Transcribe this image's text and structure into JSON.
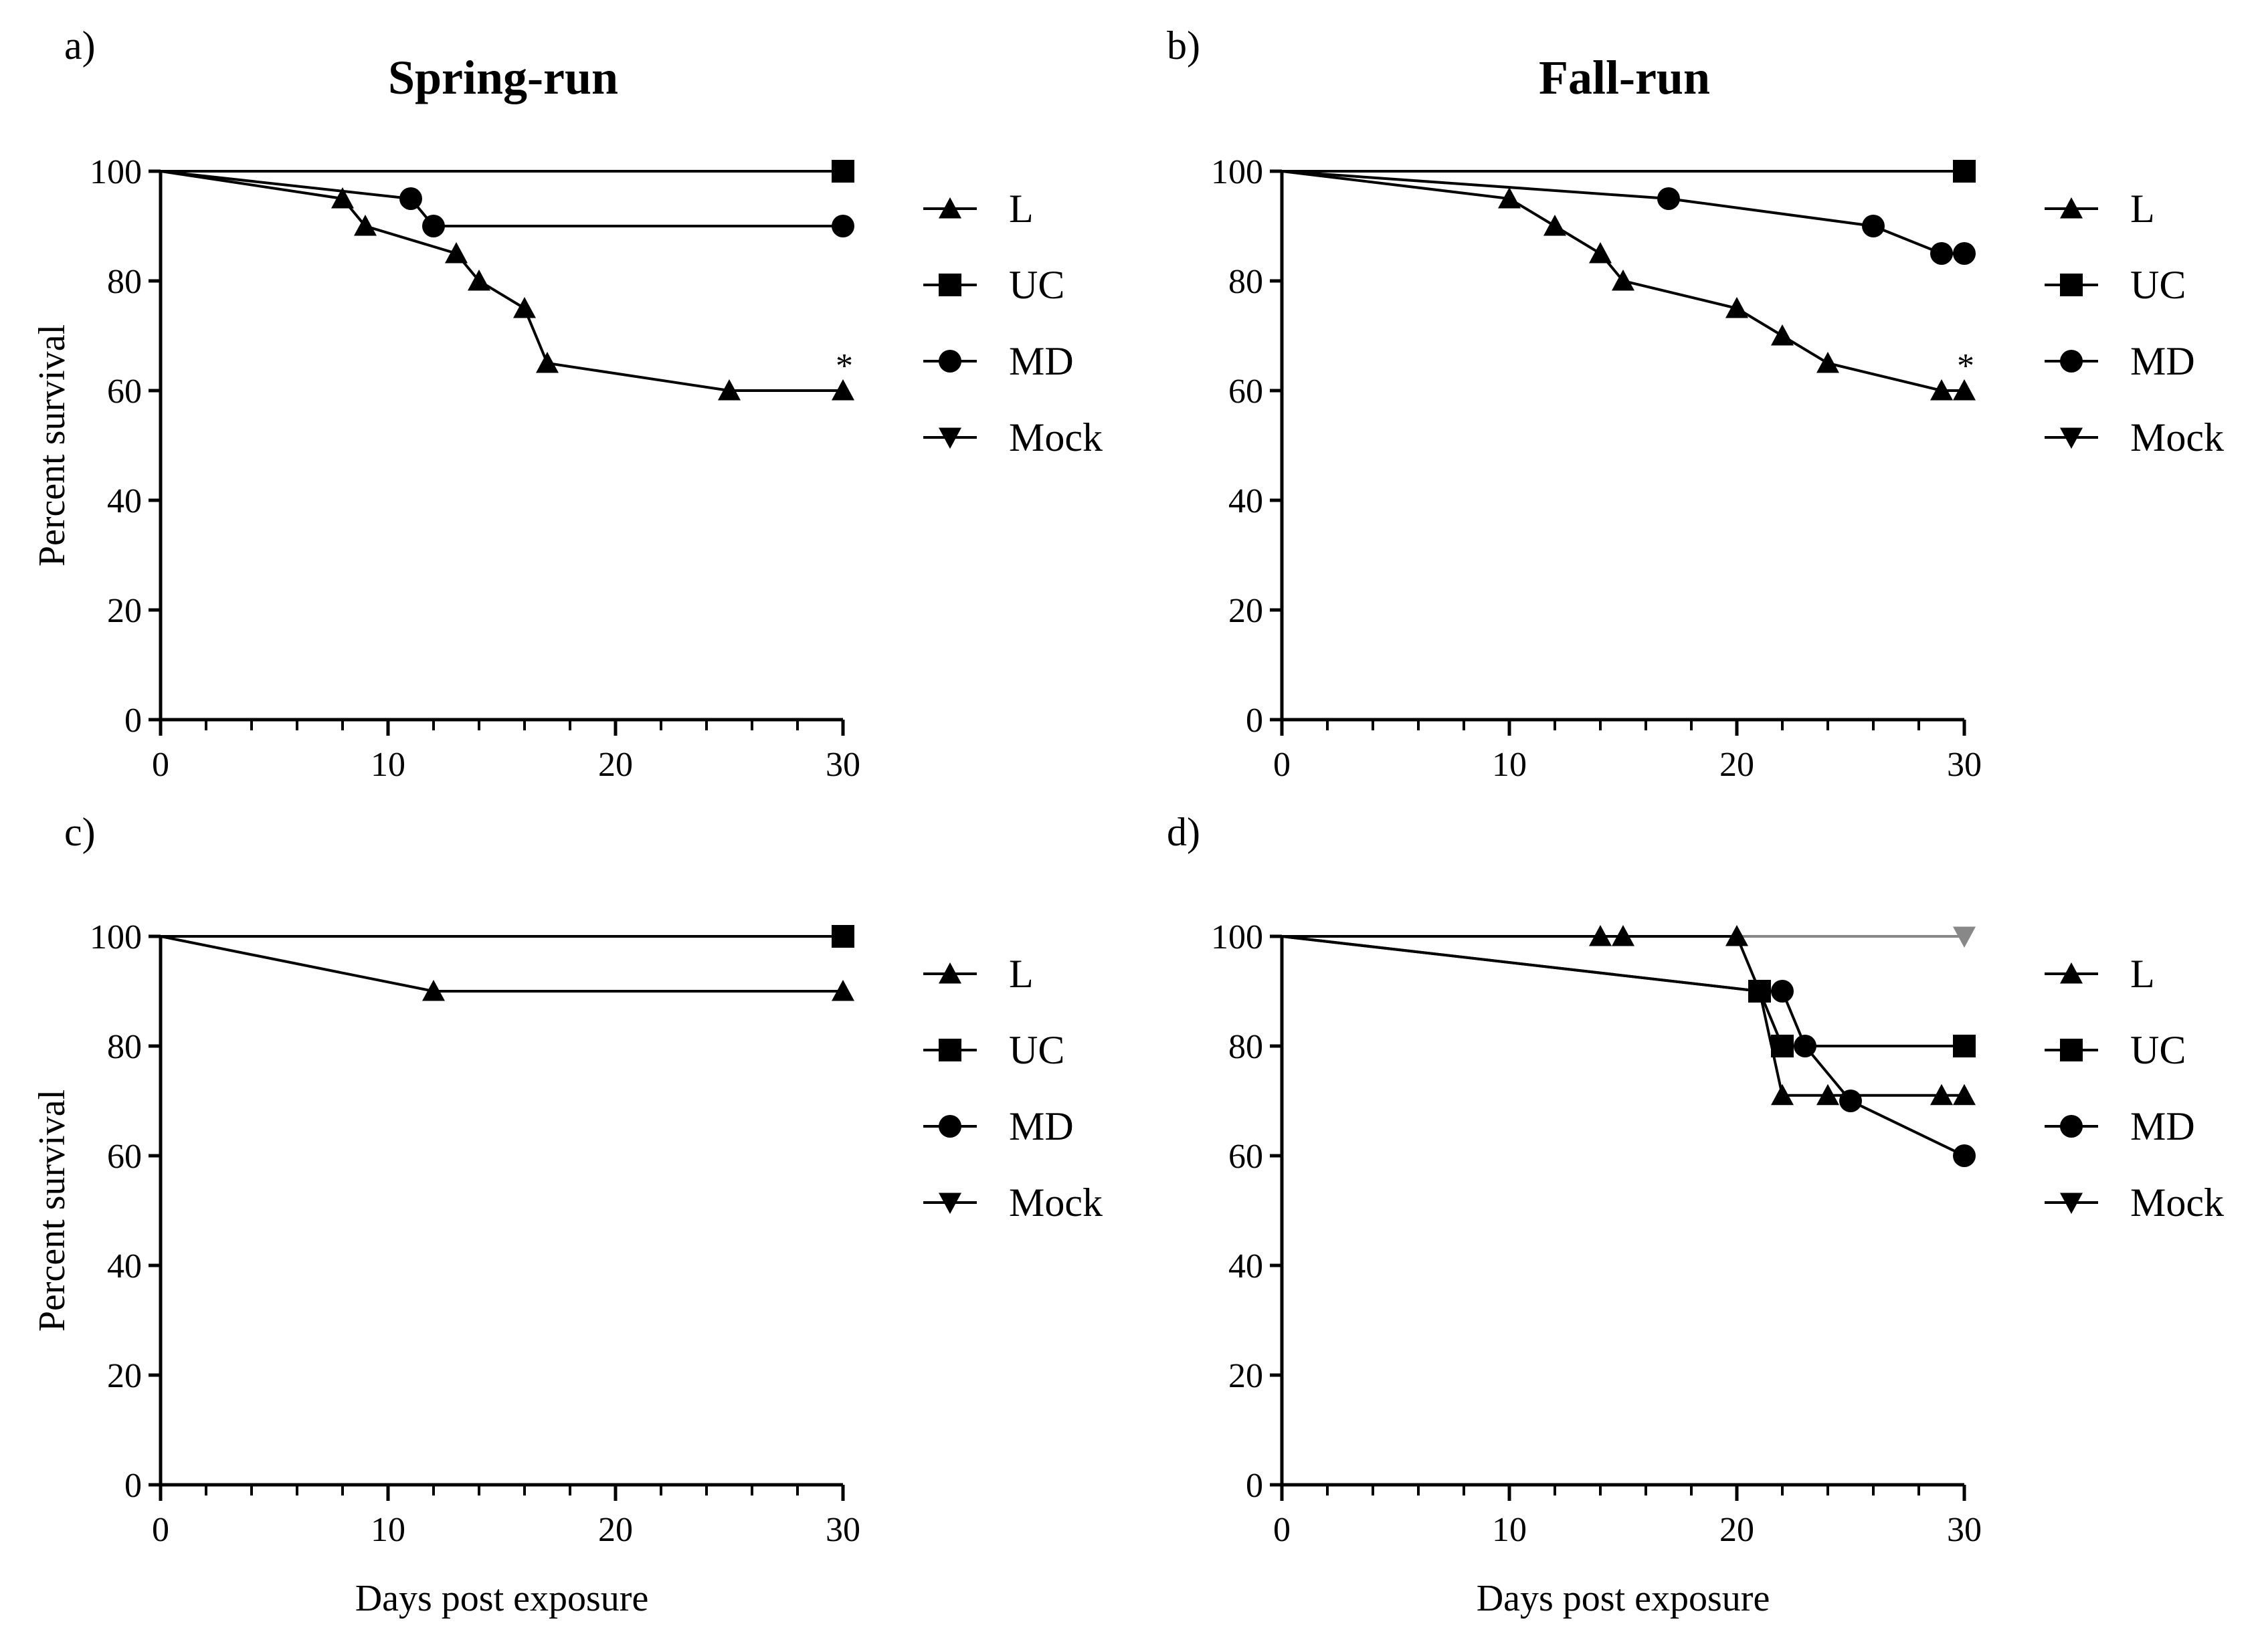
{
  "chart_data": [
    {
      "panel": "a)",
      "title": "Spring-run",
      "type": "line",
      "xlabel": "",
      "ylabel": "Percent survival",
      "xlim": [
        0,
        30
      ],
      "ylim": [
        0,
        100
      ],
      "xticks": [
        "0",
        "10",
        "20",
        "30"
      ],
      "yticks": [
        "0",
        "20",
        "40",
        "60",
        "80",
        "100"
      ],
      "legend": [
        "L",
        "UC",
        "MD",
        "Mock"
      ],
      "series": [
        {
          "name": "Mock",
          "marker": "triangle-down",
          "color": "#000000",
          "x": [
            0,
            30
          ],
          "y": [
            100,
            100
          ],
          "markers_x": []
        },
        {
          "name": "UC",
          "marker": "square",
          "color": "#000000",
          "x": [
            0,
            30
          ],
          "y": [
            100,
            100
          ],
          "markers_x": [
            30
          ]
        },
        {
          "name": "MD",
          "marker": "circle",
          "color": "#000000",
          "x": [
            0,
            11,
            12,
            30
          ],
          "y": [
            100,
            95,
            90,
            90
          ],
          "markers_x": [
            11,
            12,
            30
          ]
        },
        {
          "name": "L",
          "marker": "triangle-up",
          "color": "#000000",
          "x": [
            0,
            8,
            9,
            13,
            14,
            16,
            17,
            25,
            30
          ],
          "y": [
            100,
            95,
            90,
            85,
            80,
            75,
            65,
            60,
            60
          ],
          "markers_x": [
            8,
            9,
            13,
            14,
            16,
            17,
            25,
            30
          ]
        }
      ],
      "annotations": [
        {
          "text": "*",
          "x": 30,
          "y": 60
        }
      ]
    },
    {
      "panel": "b)",
      "title": "Fall-run",
      "type": "line",
      "xlabel": "",
      "ylabel": "",
      "xlim": [
        0,
        30
      ],
      "ylim": [
        0,
        100
      ],
      "xticks": [
        "0",
        "10",
        "20",
        "30"
      ],
      "yticks": [
        "0",
        "20",
        "40",
        "60",
        "80",
        "100"
      ],
      "legend": [
        "L",
        "UC",
        "MD",
        "Mock"
      ],
      "series": [
        {
          "name": "Mock",
          "marker": "triangle-down",
          "color": "#000000",
          "x": [
            0,
            30
          ],
          "y": [
            100,
            100
          ],
          "markers_x": []
        },
        {
          "name": "UC",
          "marker": "square",
          "color": "#000000",
          "x": [
            0,
            30
          ],
          "y": [
            100,
            100
          ],
          "markers_x": [
            30
          ]
        },
        {
          "name": "MD",
          "marker": "circle",
          "color": "#000000",
          "x": [
            0,
            17,
            26,
            29,
            30
          ],
          "y": [
            100,
            95,
            90,
            85,
            85
          ],
          "markers_x": [
            17,
            26,
            29,
            30
          ]
        },
        {
          "name": "L",
          "marker": "triangle-up",
          "color": "#000000",
          "x": [
            0,
            10,
            12,
            14,
            15,
            20,
            22,
            24,
            29,
            30
          ],
          "y": [
            100,
            95,
            90,
            85,
            80,
            75,
            70,
            65,
            60,
            60
          ],
          "markers_x": [
            10,
            12,
            14,
            15,
            20,
            22,
            24,
            29,
            30
          ]
        }
      ],
      "annotations": [
        {
          "text": "*",
          "x": 30,
          "y": 60
        }
      ]
    },
    {
      "panel": "c)",
      "title": "",
      "type": "line",
      "xlabel": "Days post exposure",
      "ylabel": "Percent survival",
      "xlim": [
        0,
        30
      ],
      "ylim": [
        0,
        100
      ],
      "xticks": [
        "0",
        "10",
        "20",
        "30"
      ],
      "yticks": [
        "0",
        "20",
        "40",
        "60",
        "80",
        "100"
      ],
      "legend": [
        "L",
        "UC",
        "MD",
        "Mock"
      ],
      "series": [
        {
          "name": "Mock",
          "marker": "triangle-down",
          "color": "#000000",
          "x": [
            0,
            30
          ],
          "y": [
            100,
            100
          ],
          "markers_x": []
        },
        {
          "name": "UC",
          "marker": "square",
          "color": "#000000",
          "x": [
            0,
            30
          ],
          "y": [
            100,
            100
          ],
          "markers_x": [
            30
          ]
        },
        {
          "name": "MD",
          "marker": "circle",
          "color": "#000000",
          "x": [
            0,
            30
          ],
          "y": [
            100,
            100
          ],
          "markers_x": [
            30
          ]
        },
        {
          "name": "L",
          "marker": "triangle-up",
          "color": "#000000",
          "x": [
            0,
            12,
            30
          ],
          "y": [
            100,
            90,
            90
          ],
          "markers_x": [
            12,
            30
          ]
        }
      ],
      "annotations": []
    },
    {
      "panel": "d)",
      "title": "",
      "type": "line",
      "xlabel": "Days post exposure",
      "ylabel": "",
      "xlim": [
        0,
        30
      ],
      "ylim": [
        0,
        100
      ],
      "xticks": [
        "0",
        "10",
        "20",
        "30"
      ],
      "yticks": [
        "0",
        "20",
        "40",
        "60",
        "80",
        "100"
      ],
      "legend": [
        "L",
        "UC",
        "MD",
        "Mock"
      ],
      "series": [
        {
          "name": "Mock",
          "marker": "triangle-down",
          "color": "#888888",
          "x": [
            0,
            30
          ],
          "y": [
            100,
            100
          ],
          "markers_x": [
            30
          ]
        },
        {
          "name": "L",
          "marker": "triangle-up",
          "color": "#000000",
          "x": [
            0,
            14,
            15,
            20,
            21,
            22,
            24,
            29,
            30
          ],
          "y": [
            100,
            100,
            100,
            100,
            90,
            71,
            71,
            71,
            71
          ],
          "markers_x": [
            14,
            15,
            20,
            22,
            24,
            29,
            30
          ]
        },
        {
          "name": "UC",
          "marker": "square",
          "color": "#000000",
          "x": [
            0,
            21,
            22,
            30
          ],
          "y": [
            100,
            90,
            80,
            80
          ],
          "markers_x": [
            21,
            22,
            30
          ]
        },
        {
          "name": "MD",
          "marker": "circle",
          "color": "#000000",
          "x": [
            0,
            21,
            22,
            23,
            25,
            30
          ],
          "y": [
            100,
            90,
            90,
            80,
            70,
            60
          ],
          "markers_x": [
            22,
            23,
            25,
            30
          ]
        }
      ],
      "annotations": []
    }
  ]
}
